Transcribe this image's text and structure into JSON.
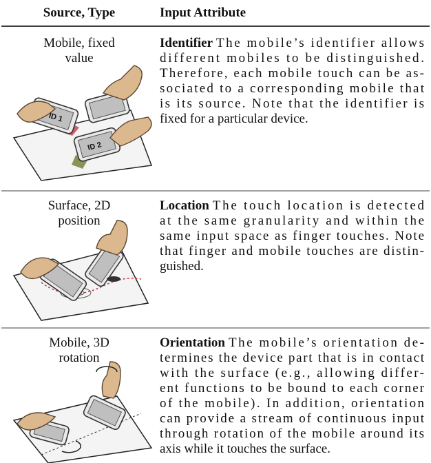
{
  "table": {
    "header": [
      "Source, Type",
      "Input Attribute"
    ],
    "rows": [
      {
        "source_type": [
          "Mobile, fixed",
          "value"
        ],
        "attribute": "Identifier",
        "description": [
          "The mobile’s identifier allows",
          "different mobiles to be distinguished.",
          "Therefore, each mobile touch can be as-",
          "sociated to a corresponding mobile that",
          "is its source.  Note that the identifier is",
          "fixed for a particular device."
        ],
        "illustration_labels": [
          "ID 1",
          "ID 2"
        ]
      },
      {
        "source_type": [
          "Surface, 2D",
          "position"
        ],
        "attribute": "Location",
        "description": [
          "The touch location is detected",
          "at the same granularity and within the",
          "same input space as finger touches. Note",
          "that finger and mobile touches are distin-",
          "guished."
        ]
      },
      {
        "source_type": [
          "Mobile, 3D",
          "rotation"
        ],
        "attribute": "Orientation",
        "description": [
          "The mobile’s orientation de-",
          "termines the device part that is in contact",
          "with the surface (e.g., allowing differ-",
          "ent functions to be bound to each corner",
          "of the mobile). In addition, orientation",
          "can provide a stream of continuous input",
          "through rotation of the mobile around its",
          "axis while it touches the surface."
        ]
      }
    ]
  }
}
